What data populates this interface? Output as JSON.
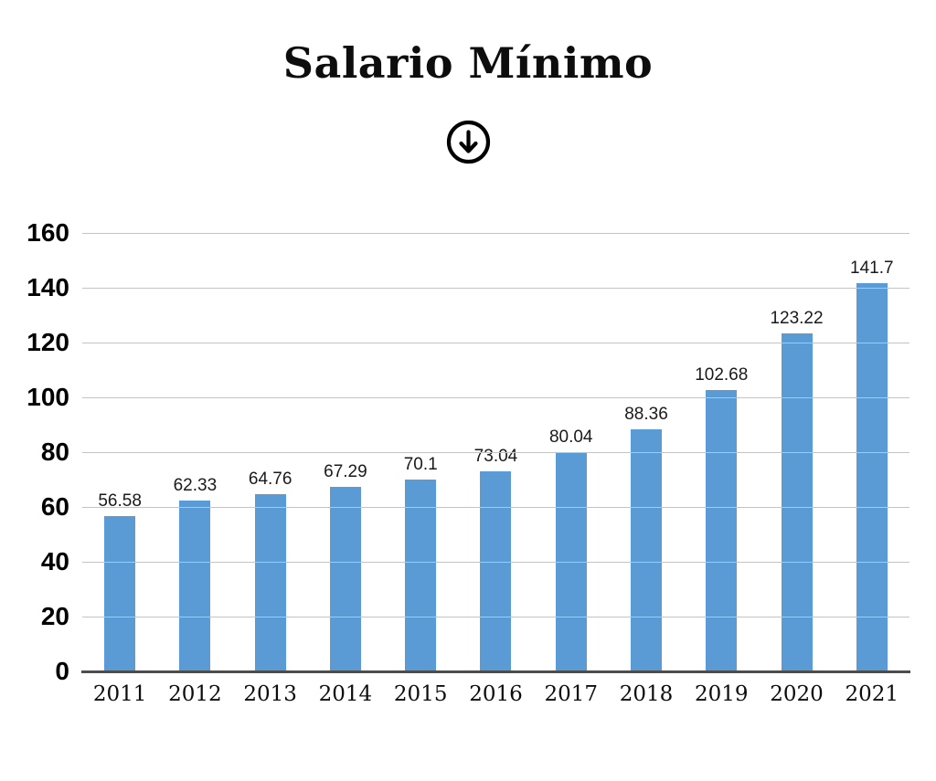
{
  "page": {
    "title": "Salario Mínimo",
    "icon": "circled-down-arrow"
  },
  "chart_data": {
    "type": "bar",
    "title": "Salario Mínimo",
    "categories": [
      "2011",
      "2012",
      "2013",
      "2014",
      "2015",
      "2016",
      "2017",
      "2018",
      "2019",
      "2020",
      "2021"
    ],
    "values": [
      56.58,
      62.33,
      64.76,
      67.29,
      70.1,
      73.04,
      80.04,
      88.36,
      102.68,
      123.22,
      141.7
    ],
    "value_labels": [
      "56.58",
      "62.33",
      "64.76",
      "67.29",
      "70.1",
      "73.04",
      "80.04",
      "88.36",
      "102.68",
      "123.22",
      "141.7"
    ],
    "xlabel": "",
    "ylabel": "",
    "ylim": [
      0,
      160
    ],
    "yticks": [
      0,
      20,
      40,
      60,
      80,
      100,
      120,
      140,
      160
    ],
    "grid": true,
    "legend": false,
    "colors": {
      "bar": "#5B9BD5",
      "gridline": "#c3c3c3",
      "axis_line": "#4d4d4d",
      "text": "#000000"
    }
  }
}
